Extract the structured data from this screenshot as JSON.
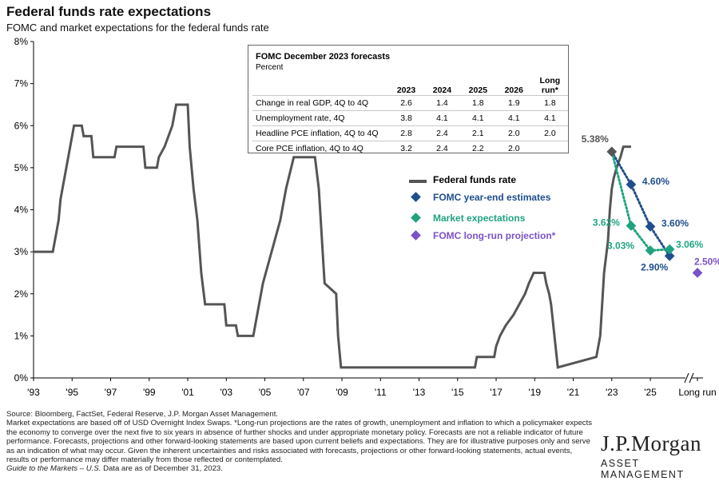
{
  "header": {
    "title": "Federal funds rate expectations",
    "subtitle": "FOMC and market expectations for the federal funds rate"
  },
  "forecast_table": {
    "title": "FOMC December 2023 forecasts",
    "unit": "Percent",
    "columns": [
      "2023",
      "2024",
      "2025",
      "2026",
      "Long run*"
    ],
    "rows": [
      {
        "label": "Change in real GDP, 4Q to 4Q",
        "values": [
          "2.6",
          "1.4",
          "1.8",
          "1.9",
          "1.8"
        ]
      },
      {
        "label": "Unemployment rate, 4Q",
        "values": [
          "3.8",
          "4.1",
          "4.1",
          "4.1",
          "4.1"
        ]
      },
      {
        "label": "Headline PCE inflation, 4Q to 4Q",
        "values": [
          "2.8",
          "2.4",
          "2.1",
          "2.0",
          "2.0"
        ]
      },
      {
        "label": "Core PCE inflation, 4Q to 4Q",
        "values": [
          "3.2",
          "2.4",
          "2.2",
          "2.0",
          ""
        ]
      }
    ]
  },
  "chart_data": {
    "type": "line",
    "ylim": [
      0,
      8
    ],
    "y_ticks": [
      "0%",
      "1%",
      "2%",
      "3%",
      "4%",
      "5%",
      "6%",
      "7%",
      "8%"
    ],
    "x_ticks": [
      "'93",
      "'95",
      "'97",
      "'99",
      "'01",
      "'03",
      "'05",
      "'07",
      "'09",
      "'11",
      "'13",
      "'15",
      "'17",
      "'19",
      "'21",
      "'23",
      "'25",
      "Long run"
    ],
    "xlim": [
      1993,
      2026.9
    ],
    "grid": false,
    "legend_position": "center-right",
    "series": [
      {
        "name": "Federal funds rate",
        "color": "#555555",
        "points": [
          [
            1993.0,
            3.0
          ],
          [
            1994.0,
            3.0
          ],
          [
            1994.1,
            3.25
          ],
          [
            1994.3,
            3.75
          ],
          [
            1994.4,
            4.25
          ],
          [
            1994.6,
            4.75
          ],
          [
            1994.9,
            5.5
          ],
          [
            1995.1,
            6.0
          ],
          [
            1995.5,
            6.0
          ],
          [
            1995.6,
            5.75
          ],
          [
            1996.0,
            5.75
          ],
          [
            1996.1,
            5.25
          ],
          [
            1997.2,
            5.25
          ],
          [
            1997.3,
            5.5
          ],
          [
            1998.7,
            5.5
          ],
          [
            1998.8,
            5.0
          ],
          [
            1999.4,
            5.0
          ],
          [
            1999.5,
            5.25
          ],
          [
            1999.8,
            5.5
          ],
          [
            2000.0,
            5.75
          ],
          [
            2000.2,
            6.0
          ],
          [
            2000.4,
            6.5
          ],
          [
            2001.0,
            6.5
          ],
          [
            2001.1,
            5.5
          ],
          [
            2001.3,
            4.5
          ],
          [
            2001.5,
            3.75
          ],
          [
            2001.7,
            2.5
          ],
          [
            2001.9,
            1.75
          ],
          [
            2002.9,
            1.75
          ],
          [
            2003.0,
            1.25
          ],
          [
            2003.5,
            1.25
          ],
          [
            2003.6,
            1.0
          ],
          [
            2004.4,
            1.0
          ],
          [
            2004.6,
            1.5
          ],
          [
            2004.9,
            2.25
          ],
          [
            2005.2,
            2.75
          ],
          [
            2005.5,
            3.25
          ],
          [
            2005.8,
            3.75
          ],
          [
            2006.1,
            4.5
          ],
          [
            2006.5,
            5.25
          ],
          [
            2007.6,
            5.25
          ],
          [
            2007.8,
            4.5
          ],
          [
            2008.0,
            3.0
          ],
          [
            2008.1,
            2.25
          ],
          [
            2008.7,
            2.0
          ],
          [
            2008.8,
            1.0
          ],
          [
            2008.95,
            0.25
          ],
          [
            2015.9,
            0.25
          ],
          [
            2016.0,
            0.5
          ],
          [
            2016.9,
            0.5
          ],
          [
            2017.0,
            0.75
          ],
          [
            2017.2,
            1.0
          ],
          [
            2017.5,
            1.25
          ],
          [
            2017.9,
            1.5
          ],
          [
            2018.2,
            1.75
          ],
          [
            2018.5,
            2.0
          ],
          [
            2018.7,
            2.25
          ],
          [
            2018.95,
            2.5
          ],
          [
            2019.5,
            2.5
          ],
          [
            2019.6,
            2.25
          ],
          [
            2019.75,
            2.0
          ],
          [
            2019.85,
            1.75
          ],
          [
            2020.2,
            0.25
          ],
          [
            2022.2,
            0.5
          ],
          [
            2022.4,
            1.0
          ],
          [
            2022.5,
            1.75
          ],
          [
            2022.6,
            2.5
          ],
          [
            2022.8,
            3.25
          ],
          [
            2022.9,
            4.0
          ],
          [
            2023.0,
            4.5
          ],
          [
            2023.1,
            4.75
          ],
          [
            2023.25,
            5.0
          ],
          [
            2023.45,
            5.25
          ],
          [
            2023.6,
            5.5
          ],
          [
            2024.0,
            5.5
          ]
        ]
      },
      {
        "name": "FOMC year-end estimates",
        "color": "#1f4e8c",
        "points": [
          [
            2023.0,
            5.38
          ],
          [
            2024.0,
            4.6
          ],
          [
            2025.0,
            3.6
          ],
          [
            2026.0,
            2.9
          ]
        ],
        "labels": [
          "5.38%",
          "4.60%",
          "3.60%",
          "2.90%"
        ]
      },
      {
        "name": "Market expectations",
        "color": "#1fa37f",
        "points": [
          [
            2023.0,
            5.38
          ],
          [
            2024.0,
            3.62
          ],
          [
            2025.0,
            3.03
          ],
          [
            2026.0,
            3.06
          ]
        ],
        "labels": [
          "",
          "3.62%",
          "3.03%",
          "3.06%"
        ]
      },
      {
        "name": "FOMC long-run projection*",
        "color": "#7b52c7",
        "points": [
          [
            "Long run",
            2.5
          ]
        ],
        "labels": [
          "2.50%"
        ]
      }
    ]
  },
  "footnote": {
    "source": "Source: Bloomberg, FactSet, Federal Reserve, J.P. Morgan Asset Management.",
    "body": "Market expectations are based off of USD Overnight Index Swaps. *Long-run projections are the rates of growth, unemployment and inflation to which a policymaker expects the economy to converge over the next five to six years in absence of further shocks and under appropriate monetary policy. Forecasts are not a reliable indicator of future performance. Forecasts, projections and other forward-looking statements are based upon current beliefs and expectations. They are for illustrative purposes only and serve as an indication of what may occur. Given the inherent uncertainties and risks associated with forecasts, projections or other forward-looking statements, actual events, results or performance may differ materially from those reflected or contemplated.",
    "guide": "Guide to the Markets – U.S.",
    "date_note": "Data are as of December 31, 2023."
  },
  "logo": {
    "name": "J.P.Morgan",
    "sub": "ASSET MANAGEMENT"
  }
}
